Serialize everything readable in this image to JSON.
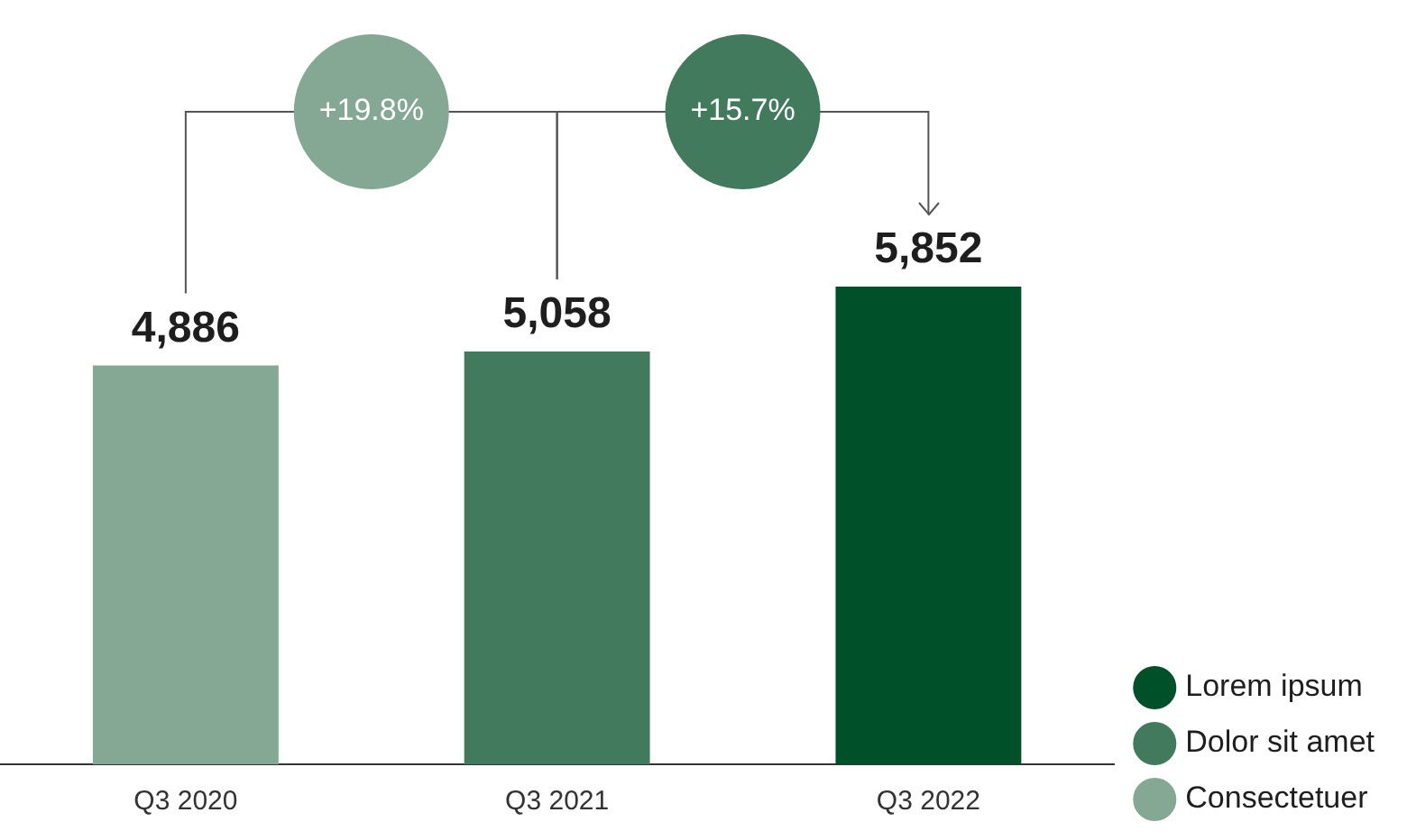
{
  "chart_data": {
    "type": "bar",
    "stacked": true,
    "categories": [
      "Q3 2020",
      "Q3 2021",
      "Q3 2022"
    ],
    "series": [
      {
        "name": "Lorem ipsum",
        "color": "#00502a",
        "values": [
          null,
          null,
          5852
        ],
        "value_labels": [
          null,
          null,
          "5,852"
        ]
      },
      {
        "name": "Dolor sit amet",
        "color": "#427a5e",
        "values": [
          null,
          5058,
          null
        ],
        "value_labels": [
          null,
          "5,058",
          null
        ]
      },
      {
        "name": "Consectetuer",
        "color": "#84a894",
        "values": [
          4886,
          null,
          null
        ],
        "value_labels": [
          "4,886",
          null,
          null
        ]
      }
    ],
    "grid": false,
    "legend": "bottom right",
    "annotations": [
      "+19.8%",
      "+15.7%"
    ]
  }
}
